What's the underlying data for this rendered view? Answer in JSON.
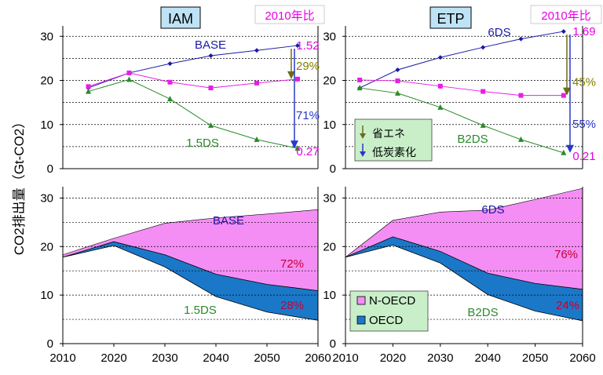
{
  "y_axis_label": "CO2排出量（Gt-CO2）",
  "colors": {
    "base": "#1a1aa8",
    "mid": "#e61ee6",
    "low": "#2a8a2a",
    "n_oecd_fill": "#f48ef4",
    "oecd_fill": "#1b78c8",
    "title_bg": "#bfe3f6",
    "legend_bg": "#c9efc9",
    "ratio_text": "#e600e6",
    "arrow_olive": "#6b6b1a",
    "arrow_blue": "#2838c8",
    "pct_olive": "#808000",
    "pct_blue": "#2838c8",
    "pct_red": "#c80032"
  },
  "chart_data": [
    {
      "type": "line",
      "panel": "IAM-top",
      "title": "IAM",
      "corner_label": "2010年比",
      "ylim": [
        0,
        32
      ],
      "yticks": [
        0,
        10,
        20,
        30
      ],
      "grid": true,
      "series": [
        {
          "name": "BASE",
          "x": [
            2015,
            2023,
            2031,
            2039,
            2048,
            2056
          ],
          "values": [
            18.3,
            21.7,
            23.8,
            25.6,
            26.8,
            27.9
          ]
        },
        {
          "name": "",
          "x": [
            2015,
            2023,
            2031,
            2039,
            2048,
            2056
          ],
          "values": [
            18.6,
            21.7,
            19.6,
            18.3,
            19.4,
            20.3
          ]
        },
        {
          "name": "1.5DS",
          "x": [
            2015,
            2023,
            2031,
            2039,
            2048,
            2056
          ],
          "values": [
            17.5,
            20.2,
            15.8,
            9.8,
            6.6,
            4.6
          ]
        }
      ],
      "annotations": {
        "ratio_top": "1.52",
        "ratio_bottom": "0.27",
        "pct_upper": "29%",
        "pct_lower": "71%"
      }
    },
    {
      "type": "line",
      "panel": "ETP-top",
      "title": "ETP",
      "corner_label": "2010年比",
      "ylim": [
        0,
        32
      ],
      "yticks": [
        0,
        10,
        20,
        30
      ],
      "grid": true,
      "series": [
        {
          "name": "6DS",
          "x": [
            2013,
            2021,
            2030,
            2039,
            2047,
            2056
          ],
          "values": [
            18.3,
            22.4,
            25.2,
            27.5,
            29.4,
            31.1
          ]
        },
        {
          "name": "",
          "x": [
            2013,
            2021,
            2030,
            2039,
            2047,
            2056
          ],
          "values": [
            20.1,
            19.9,
            18.7,
            17.5,
            16.6,
            16.6
          ]
        },
        {
          "name": "B2DS",
          "x": [
            2013,
            2021,
            2030,
            2039,
            2047,
            2056
          ],
          "values": [
            18.3,
            17.1,
            13.9,
            9.8,
            6.6,
            3.6
          ]
        }
      ],
      "legend_items": [
        "省エネ",
        "低炭素化"
      ],
      "annotations": {
        "ratio_top": "1.69",
        "ratio_bottom": "0.21",
        "pct_upper": "45%",
        "pct_lower": "55%"
      }
    },
    {
      "type": "area",
      "panel": "IAM-bottom",
      "ylim": [
        0,
        32
      ],
      "yticks": [
        0,
        10,
        20,
        30
      ],
      "xticks": [
        2010,
        2020,
        2030,
        2040,
        2050,
        2060
      ],
      "grid": true,
      "x": [
        2010,
        2020,
        2030,
        2040,
        2050,
        2060
      ],
      "total": [
        18.3,
        21.7,
        24.8,
        25.9,
        26.7,
        27.6
      ],
      "oecd_top": [
        17.8,
        21.0,
        18.3,
        14.3,
        12.2,
        10.9
      ],
      "oecd_bottom": [
        17.8,
        20.2,
        15.8,
        9.7,
        6.5,
        4.8
      ],
      "curve_labels": [
        "BASE",
        "1.5DS"
      ],
      "pct_n_oecd": "72%",
      "pct_oecd": "28%"
    },
    {
      "type": "area",
      "panel": "ETP-bottom",
      "ylim": [
        0,
        32
      ],
      "yticks": [
        0,
        10,
        20,
        30
      ],
      "xticks": [
        2010,
        2020,
        2030,
        2040,
        2050,
        2060
      ],
      "grid": true,
      "x": [
        2010,
        2020,
        2030,
        2040,
        2050,
        2060
      ],
      "total": [
        17.8,
        25.4,
        27.1,
        27.5,
        29.7,
        32.0
      ],
      "oecd_top": [
        17.8,
        22.0,
        19.0,
        14.5,
        12.4,
        11.2
      ],
      "oecd_bottom": [
        17.8,
        20.3,
        16.6,
        10.1,
        6.7,
        4.7
      ],
      "curve_labels": [
        "6DS",
        "B2DS"
      ],
      "legend_items": [
        "N-OECD",
        "OECD"
      ],
      "pct_n_oecd": "76%",
      "pct_oecd": "24%"
    }
  ]
}
